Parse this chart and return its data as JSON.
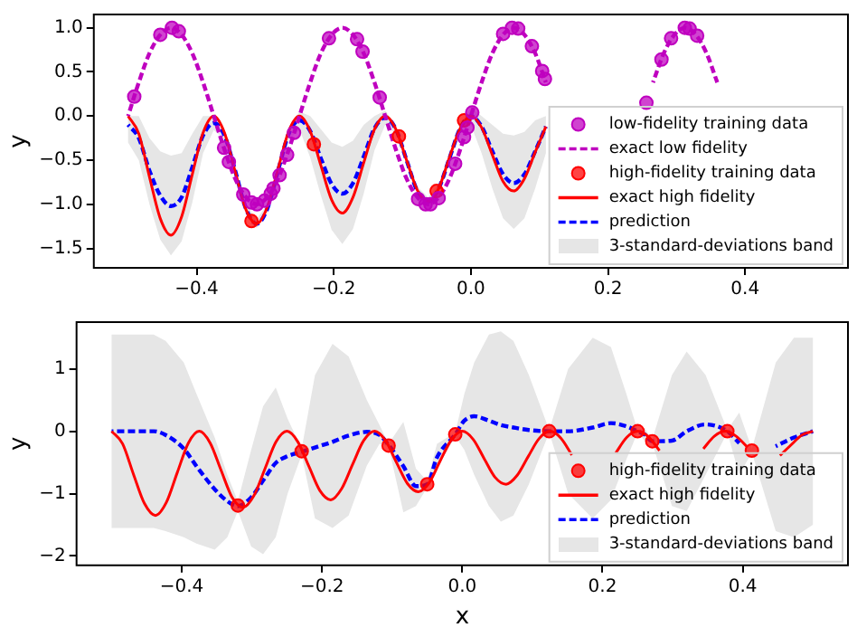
{
  "chart_data": [
    {
      "type": "line",
      "ylabel": "y",
      "xlim": [
        -0.55,
        0.55
      ],
      "ylim": [
        -1.72,
        1.15
      ],
      "xticks": [
        {
          "value": -0.4,
          "label": "−0.4"
        },
        {
          "value": -0.2,
          "label": "−0.2"
        },
        {
          "value": 0,
          "label": "0.0"
        },
        {
          "value": 0.2,
          "label": "0.2"
        },
        {
          "value": 0.4,
          "label": "0.4"
        }
      ],
      "yticks": [
        {
          "value": -1.5,
          "label": "−1.5"
        },
        {
          "value": -1,
          "label": "−1.0"
        },
        {
          "value": -0.5,
          "label": "−0.5"
        },
        {
          "value": 0,
          "label": "0.0"
        },
        {
          "value": 0.5,
          "label": "0.5"
        },
        {
          "value": 1,
          "label": "1.0"
        }
      ],
      "legend": "bottom right",
      "annotations": [
        "3-standard-deviations band"
      ],
      "series": [
        {
          "name": "low-fidelity training data",
          "type": "scatter",
          "marker": "circle",
          "color": "#bf00bf",
          "x": [
            -0.491,
            -0.453,
            -0.436,
            -0.426,
            -0.36,
            -0.353,
            -0.332,
            -0.32,
            -0.312,
            -0.301,
            -0.292,
            -0.288,
            -0.279,
            -0.268,
            -0.258,
            -0.207,
            -0.166,
            -0.158,
            -0.133,
            -0.077,
            -0.066,
            -0.059,
            -0.047,
            -0.023,
            -0.01,
            -0.005,
            0.002,
            0.047,
            0.06,
            0.069,
            0.089,
            0.104,
            0.108,
            0.256,
            0.278,
            0.292,
            0.312,
            0.319,
            0.33
          ],
          "values": [
            0.22,
            0.92,
            1.0,
            0.96,
            -0.36,
            -0.52,
            -0.89,
            -0.98,
            -1.0,
            -0.96,
            -0.88,
            -0.82,
            -0.67,
            -0.44,
            -0.19,
            0.88,
            0.87,
            0.73,
            0.21,
            -0.94,
            -1.0,
            -1.0,
            -0.93,
            -0.54,
            -0.24,
            -0.13,
            0.04,
            0.93,
            1.0,
            0.99,
            0.79,
            0.51,
            0.42,
            0.15,
            0.64,
            0.88,
            1.0,
            0.99,
            0.91
          ]
        },
        {
          "name": "exact low fidelity",
          "type": "line",
          "line_style": "dashed",
          "color": "#bf00bf",
          "x": [
            -0.5,
            -0.4844,
            -0.4688,
            -0.4531,
            -0.4375,
            -0.4219,
            -0.4063,
            -0.3906,
            -0.375,
            -0.3594,
            -0.3438,
            -0.3281,
            -0.3125,
            -0.2969,
            -0.2813,
            -0.2656,
            -0.25,
            -0.2344,
            -0.2188,
            -0.2031,
            -0.1875,
            -0.1719,
            -0.1563,
            -0.1406,
            -0.125,
            -0.1094,
            -0.0938,
            -0.0781,
            -0.0625,
            -0.0469,
            -0.0313,
            -0.0156,
            0,
            0.0156,
            0.0313,
            0.0469,
            0.0625,
            0.0781,
            0.0938,
            0.1094,
            0.125,
            0.1406,
            0.1563,
            0.1719,
            0.1875,
            0.2031,
            0.2188,
            0.2344,
            0.25,
            0.2656,
            0.2813,
            0.2969,
            0.3125,
            0.3281,
            0.3438,
            0.3594
          ],
          "values": [
            0,
            0.38,
            0.71,
            0.92,
            1,
            0.92,
            0.71,
            0.38,
            0,
            -0.38,
            -0.71,
            -0.92,
            -1,
            -0.92,
            -0.71,
            -0.38,
            0,
            0.38,
            0.71,
            0.92,
            1,
            0.92,
            0.71,
            0.38,
            0,
            -0.38,
            -0.71,
            -0.92,
            -1,
            -0.92,
            -0.71,
            -0.38,
            0,
            0.38,
            0.71,
            0.92,
            1,
            0.92,
            0.71,
            0.38,
            null,
            null,
            null,
            null,
            null,
            null,
            null,
            null,
            null,
            0.38,
            0.71,
            0.92,
            1,
            0.92,
            0.71,
            0.38
          ]
        },
        {
          "name": "high-fidelity training data",
          "type": "scatter",
          "marker": "circle",
          "color": "#ff0000",
          "x": [
            -0.32,
            -0.229,
            -0.105,
            -0.05,
            -0.01
          ],
          "values": [
            -1.19,
            -0.32,
            -0.23,
            -0.85,
            -0.05
          ]
        },
        {
          "name": "exact high fidelity",
          "type": "line",
          "line_style": "solid",
          "color": "#ff0000",
          "x": [
            -0.5,
            -0.4844,
            -0.4688,
            -0.4531,
            -0.4375,
            -0.4219,
            -0.4063,
            -0.3906,
            -0.375,
            -0.3594,
            -0.3438,
            -0.3281,
            -0.3125,
            -0.2969,
            -0.2813,
            -0.2656,
            -0.25,
            -0.2344,
            -0.2188,
            -0.2031,
            -0.1875,
            -0.1719,
            -0.1563,
            -0.1406,
            -0.125,
            -0.1094,
            -0.0938,
            -0.0781,
            -0.0625,
            -0.0469,
            -0.0313,
            -0.0156,
            0,
            0.0156,
            0.0313,
            0.0469,
            0.0625,
            0.0781,
            0.0938,
            0.1094
          ],
          "values": [
            0,
            -0.2,
            -0.69,
            -1.16,
            -1.35,
            -1.14,
            -0.66,
            -0.19,
            0,
            -0.19,
            -0.63,
            -1.06,
            -1.22,
            -1.03,
            -0.6,
            -0.17,
            0,
            -0.17,
            -0.56,
            -0.95,
            -1.1,
            -0.92,
            -0.53,
            -0.15,
            0,
            -0.15,
            -0.5,
            -0.84,
            -0.97,
            -0.82,
            -0.47,
            -0.14,
            0,
            -0.13,
            -0.44,
            -0.74,
            -0.85,
            -0.71,
            -0.41,
            -0.12
          ]
        },
        {
          "name": "prediction",
          "type": "line",
          "line_style": "dashed",
          "color": "#0000ff",
          "x": [
            -0.5,
            -0.4844,
            -0.4688,
            -0.4531,
            -0.4375,
            -0.4219,
            -0.4063,
            -0.3906,
            -0.375,
            -0.3594,
            -0.3438,
            -0.3281,
            -0.3125,
            -0.2969,
            -0.2813,
            -0.2656,
            -0.25,
            -0.2344,
            -0.2188,
            -0.2031,
            -0.1875,
            -0.1719,
            -0.1563,
            -0.1406,
            -0.125,
            -0.1094,
            -0.0938,
            -0.0781,
            -0.0625,
            -0.0469,
            -0.0313,
            -0.0156,
            0,
            0.0156,
            0.0313,
            0.0469,
            0.0625,
            0.0781,
            0.0938,
            0.1094
          ],
          "values": [
            -0.1,
            -0.25,
            -0.62,
            -0.9,
            -1.02,
            -0.92,
            -0.58,
            -0.22,
            -0.08,
            -0.22,
            -0.62,
            -1.05,
            -1.22,
            -1.05,
            -0.62,
            -0.2,
            -0.05,
            -0.17,
            -0.48,
            -0.77,
            -0.88,
            -0.76,
            -0.46,
            -0.14,
            -0.02,
            -0.15,
            -0.5,
            -0.85,
            -0.97,
            -0.82,
            -0.48,
            -0.14,
            0,
            -0.12,
            -0.4,
            -0.66,
            -0.76,
            -0.66,
            -0.4,
            -0.12
          ],
          "upper": [
            0,
            0,
            -0.25,
            -0.4,
            -0.45,
            -0.42,
            -0.2,
            0,
            0,
            -0.17,
            -0.57,
            -1.0,
            -1.17,
            -1.0,
            -0.57,
            -0.12,
            0.05,
            0,
            -0.15,
            -0.3,
            -0.35,
            -0.28,
            -0.1,
            0,
            0.06,
            -0.1,
            -0.45,
            -0.8,
            -0.92,
            -0.77,
            -0.43,
            -0.09,
            0.1,
            0,
            -0.1,
            -0.2,
            -0.22,
            -0.18,
            -0.05,
            0
          ],
          "lower": [
            -0.3,
            -0.5,
            -1.0,
            -1.4,
            -1.58,
            -1.42,
            -0.98,
            -0.42,
            -0.16,
            -0.27,
            -0.67,
            -1.1,
            -1.27,
            -1.1,
            -0.67,
            -0.28,
            -0.15,
            -0.47,
            -0.9,
            -1.29,
            -1.45,
            -1.28,
            -0.88,
            -0.39,
            -0.1,
            -0.2,
            -0.55,
            -0.9,
            -1.02,
            -0.87,
            -0.53,
            -0.19,
            -0.1,
            -0.42,
            -0.82,
            -1.16,
            -1.28,
            -1.16,
            -0.82,
            -0.42
          ]
        }
      ]
    },
    {
      "type": "line",
      "xlabel": "x",
      "ylabel": "y",
      "xlim": [
        -0.55,
        0.55
      ],
      "ylim": [
        -2.15,
        1.75
      ],
      "xticks": [
        {
          "value": -0.4,
          "label": "−0.4"
        },
        {
          "value": -0.2,
          "label": "−0.2"
        },
        {
          "value": 0,
          "label": "0.0"
        },
        {
          "value": 0.2,
          "label": "0.2"
        },
        {
          "value": 0.4,
          "label": "0.4"
        }
      ],
      "yticks": [
        {
          "value": -2,
          "label": "−2"
        },
        {
          "value": -1,
          "label": "−1"
        },
        0,
        1
      ],
      "legend": "bottom right",
      "annotations": [
        "3-standard-deviations band"
      ],
      "series": [
        {
          "name": "high-fidelity training data",
          "type": "scatter",
          "marker": "circle",
          "color": "#ff0000",
          "x": [
            -0.32,
            -0.229,
            -0.105,
            -0.05,
            -0.01,
            0.124,
            0.25,
            0.271,
            0.378,
            0.413
          ],
          "values": [
            -1.19,
            -0.32,
            -0.23,
            -0.85,
            -0.05,
            0,
            0,
            -0.16,
            0,
            -0.31
          ]
        },
        {
          "name": "exact high fidelity",
          "type": "line",
          "line_style": "solid",
          "color": "#ff0000",
          "x": [
            -0.5,
            -0.4844,
            -0.4688,
            -0.4531,
            -0.4375,
            -0.4219,
            -0.4063,
            -0.3906,
            -0.375,
            -0.3594,
            -0.3438,
            -0.3281,
            -0.3125,
            -0.2969,
            -0.2813,
            -0.2656,
            -0.25,
            -0.2344,
            -0.2188,
            -0.2031,
            -0.1875,
            -0.1719,
            -0.1563,
            -0.1406,
            -0.125,
            -0.1094,
            -0.0938,
            -0.0781,
            -0.0625,
            -0.0469,
            -0.0313,
            -0.0156,
            0,
            0.0156,
            0.0313,
            0.0469,
            0.0625,
            0.0781,
            0.0938,
            0.1094,
            0.125,
            0.1406,
            0.1563,
            0.1719,
            0.1875,
            0.2031,
            0.2188,
            0.2344,
            0.25,
            0.2656,
            0.2813,
            0.2969,
            0.3125,
            0.3281,
            0.3438,
            0.3594,
            0.375,
            0.3906,
            0.4063,
            0.4219,
            0.4375,
            0.4531,
            0.4688,
            0.4844,
            0.5
          ],
          "values": [
            0,
            -0.2,
            -0.69,
            -1.16,
            -1.35,
            -1.14,
            -0.66,
            -0.19,
            0,
            -0.19,
            -0.63,
            -1.06,
            -1.22,
            -1.03,
            -0.6,
            -0.17,
            0,
            -0.17,
            -0.56,
            -0.95,
            -1.1,
            -0.92,
            -0.53,
            -0.15,
            0,
            -0.15,
            -0.5,
            -0.84,
            -0.97,
            -0.82,
            -0.47,
            -0.14,
            0,
            -0.13,
            -0.44,
            -0.74,
            -0.85,
            -0.71,
            -0.41,
            -0.12,
            0,
            -0.11,
            -0.38,
            null,
            null,
            null,
            -0.35,
            -0.1,
            0,
            -0.09,
            -0.31,
            null,
            null,
            null,
            -0.28,
            -0.08,
            0,
            -0.08,
            -0.25,
            null,
            null,
            -0.39,
            -0.22,
            -0.06,
            0
          ]
        },
        {
          "name": "prediction",
          "type": "line",
          "line_style": "dashed",
          "color": "#0000ff",
          "x": [
            -0.5,
            -0.46,
            -0.44,
            -0.423,
            -0.397,
            -0.379,
            -0.353,
            -0.335,
            -0.32,
            -0.301,
            -0.284,
            -0.266,
            -0.249,
            -0.229,
            -0.21,
            -0.185,
            -0.162,
            -0.136,
            -0.118,
            -0.105,
            -0.084,
            -0.066,
            -0.05,
            -0.036,
            -0.01,
            0.003,
            0.017,
            0.038,
            0.055,
            0.073,
            0.095,
            0.124,
            0.151,
            0.186,
            0.212,
            0.234,
            0.25,
            0.26,
            0.271,
            0.299,
            0.32,
            0.347,
            0.378,
            0.395,
            0.413,
            0.447,
            0.473,
            0.5
          ],
          "values": [
            0,
            0,
            0,
            -0.06,
            -0.28,
            -0.56,
            -0.93,
            -1.12,
            -1.2,
            -1.06,
            -0.79,
            -0.51,
            -0.4,
            -0.33,
            -0.26,
            -0.17,
            -0.07,
            -0.01,
            -0.06,
            -0.22,
            -0.56,
            -0.88,
            -0.85,
            -0.42,
            -0.05,
            0.17,
            0.24,
            0.17,
            0.1,
            0.06,
            0.02,
            0,
            0,
            0.06,
            0.13,
            0.08,
            0,
            -0.05,
            -0.16,
            -0.15,
            0,
            0.11,
            0,
            -0.19,
            null,
            -0.24,
            -0.1,
            0
          ],
          "upper": [
            1.55,
            1.55,
            1.55,
            1.45,
            1.1,
            0.6,
            -0.1,
            -0.7,
            -1.12,
            -0.3,
            0.4,
            0.7,
            0.2,
            -0.28,
            0.9,
            1.4,
            1.2,
            0.5,
            0.1,
            -0.2,
            0.15,
            -0.6,
            -0.8,
            -0.2,
            -0.02,
            0.6,
            1.1,
            1.55,
            1.6,
            1.45,
            0.9,
            0.02,
            1.0,
            1.5,
            1.35,
            0.6,
            0.02,
            0.05,
            -0.13,
            0.9,
            1.28,
            0.9,
            0.02,
            0.3,
            -0.28,
            1.1,
            1.5,
            1.5
          ],
          "lower": [
            -1.55,
            -1.55,
            -1.55,
            -1.6,
            -1.7,
            -1.8,
            -1.9,
            -1.7,
            -1.28,
            -1.85,
            -1.97,
            -1.7,
            -1.0,
            -0.38,
            -1.4,
            -1.55,
            -1.35,
            -0.55,
            -0.2,
            -0.25,
            -1.3,
            -1.2,
            -0.9,
            -0.6,
            -0.08,
            -0.3,
            -0.7,
            -1.2,
            -1.45,
            -1.35,
            -0.85,
            -0.02,
            -1.0,
            -1.4,
            -1.1,
            -0.45,
            -0.02,
            -0.15,
            -0.19,
            -1.2,
            -1.28,
            -0.7,
            -0.02,
            -0.7,
            -0.34,
            -1.6,
            -1.7,
            -1.5
          ]
        }
      ]
    }
  ]
}
